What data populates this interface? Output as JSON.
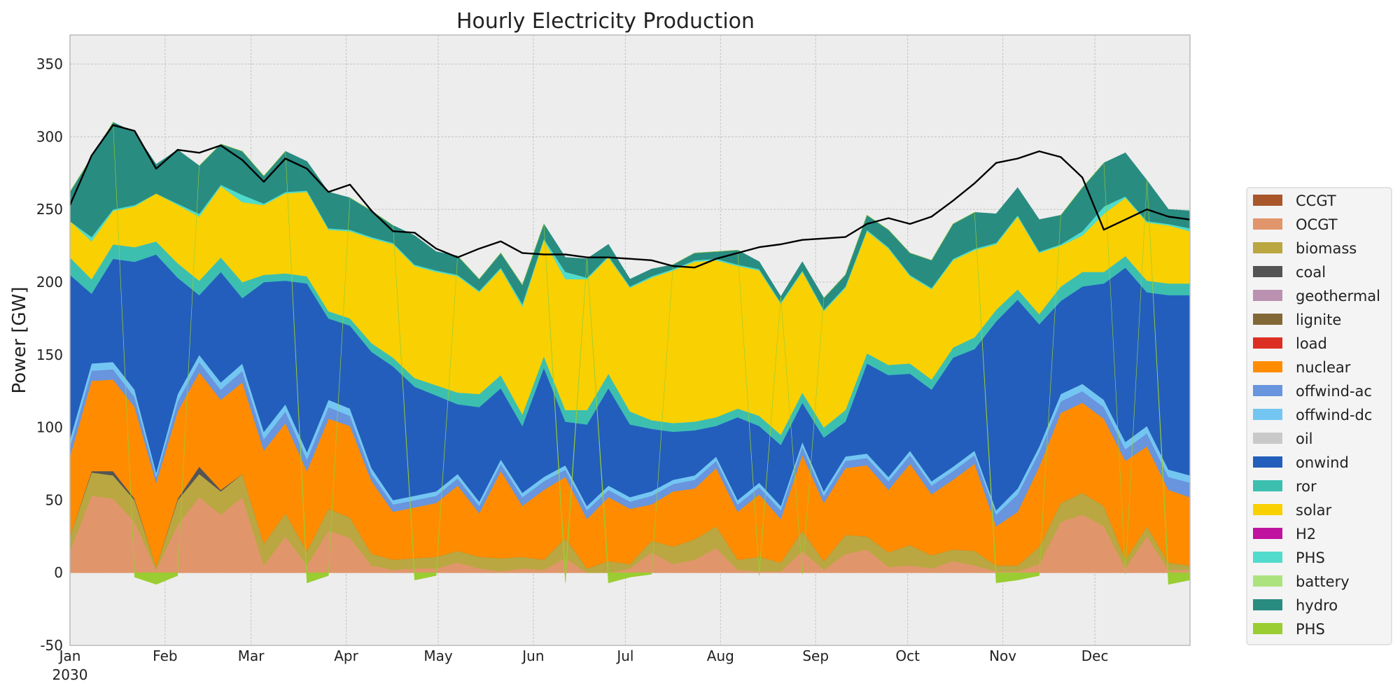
{
  "chart_data": {
    "type": "area",
    "title": "Hourly Electricity Production",
    "ylabel": "Power [GW]",
    "xlabel": "",
    "ylim": [
      -50,
      370
    ],
    "yticks": [
      -50,
      0,
      50,
      100,
      150,
      200,
      250,
      300,
      350
    ],
    "month_ticks": [
      "Jan",
      "Feb",
      "Mar",
      "Apr",
      "May",
      "Jun",
      "Jul",
      "Aug",
      "Sep",
      "Oct",
      "Nov",
      "Dec"
    ],
    "year_label": "2030",
    "x_unit": "week index (weekly averages, 2030)",
    "x": [
      0,
      1,
      2,
      3,
      4,
      5,
      6,
      7,
      8,
      9,
      10,
      11,
      12,
      13,
      14,
      15,
      16,
      17,
      18,
      19,
      20,
      21,
      22,
      23,
      24,
      25,
      26,
      27,
      28,
      29,
      30,
      31,
      32,
      33,
      34,
      35,
      36,
      37,
      38,
      39,
      40,
      41,
      42,
      43,
      44,
      45,
      46,
      47,
      48,
      49,
      50,
      51,
      52
    ],
    "grid": true,
    "legend_position": "right",
    "series": [
      {
        "name": "CCGT",
        "color": "#a9562b",
        "values": [
          0,
          0,
          0,
          0,
          0,
          0,
          0,
          0,
          0,
          0,
          0,
          0,
          0,
          0,
          0,
          0,
          0,
          0,
          0,
          0,
          0,
          0,
          0,
          0,
          0,
          0,
          0,
          0,
          0,
          0,
          0,
          0,
          0,
          0,
          0,
          0,
          0,
          0,
          0,
          0,
          0,
          0,
          0,
          0,
          0,
          0,
          0,
          0,
          0,
          0,
          0,
          0,
          0
        ]
      },
      {
        "name": "OCGT",
        "color": "#e0966a",
        "values": [
          15,
          53,
          51,
          35,
          2,
          33,
          52,
          40,
          52,
          5,
          25,
          5,
          29,
          24,
          5,
          2,
          3,
          3,
          7,
          3,
          1,
          3,
          2,
          10,
          0,
          0,
          3,
          14,
          6,
          9,
          17,
          2,
          1,
          1,
          15,
          2,
          13,
          16,
          4,
          5,
          3,
          8,
          5,
          1,
          1,
          6,
          35,
          40,
          32,
          3,
          25,
          2,
          2
        ]
      },
      {
        "name": "biomass",
        "color": "#baa741",
        "values": [
          10,
          16,
          16,
          15,
          2,
          17,
          16,
          16,
          16,
          15,
          16,
          10,
          15,
          14,
          8,
          7,
          7,
          8,
          8,
          8,
          9,
          8,
          7,
          14,
          3,
          8,
          3,
          8,
          12,
          14,
          15,
          7,
          10,
          6,
          14,
          6,
          13,
          9,
          10,
          14,
          9,
          8,
          10,
          4,
          4,
          12,
          13,
          15,
          14,
          6,
          7,
          5,
          3
        ]
      },
      {
        "name": "coal",
        "color": "#545454",
        "values": [
          0,
          1,
          3,
          1,
          0,
          1,
          5,
          1,
          0,
          0,
          0,
          0,
          0,
          0,
          0,
          0,
          0,
          0,
          0,
          0,
          0,
          0,
          0,
          0,
          0,
          0,
          0,
          0,
          0,
          0,
          0,
          0,
          0,
          0,
          0,
          0,
          0,
          0,
          0,
          0,
          0,
          0,
          0,
          0,
          0,
          0,
          0,
          0,
          0,
          0,
          0,
          0,
          0
        ]
      },
      {
        "name": "geothermal",
        "color": "#ba91b1",
        "values": [
          0,
          0,
          0,
          0,
          0,
          0,
          0,
          0,
          0,
          0,
          0,
          0,
          0,
          0,
          0,
          0,
          0,
          0,
          0,
          0,
          0,
          0,
          0,
          0,
          0,
          0,
          0,
          0,
          0,
          0,
          0,
          0,
          0,
          0,
          0,
          0,
          0,
          0,
          0,
          0,
          0,
          0,
          0,
          0,
          0,
          0,
          0,
          0,
          0,
          0,
          0,
          0,
          0
        ]
      },
      {
        "name": "lignite",
        "color": "#826837",
        "values": [
          0,
          0,
          0,
          0,
          0,
          0,
          0,
          0,
          0,
          0,
          0,
          0,
          0,
          0,
          0,
          0,
          0,
          0,
          0,
          0,
          0,
          0,
          0,
          0,
          0,
          0,
          0,
          0,
          0,
          0,
          0,
          0,
          0,
          0,
          0,
          0,
          0,
          0,
          0,
          0,
          0,
          0,
          0,
          0,
          0,
          0,
          0,
          0,
          0,
          0,
          0,
          0,
          0
        ]
      },
      {
        "name": "load",
        "color": "#dd2e23",
        "values": [
          0,
          0,
          0,
          0,
          0,
          0,
          0,
          0,
          0,
          0,
          0,
          0,
          0,
          0,
          0,
          0,
          0,
          0,
          0,
          0,
          0,
          0,
          0,
          0,
          0,
          0,
          0,
          0,
          0,
          0,
          0,
          0,
          0,
          0,
          0,
          0,
          0,
          0,
          0,
          0,
          0,
          0,
          0,
          0,
          0,
          0,
          0,
          0,
          0,
          0,
          0,
          0,
          0
        ]
      },
      {
        "name": "nuclear",
        "color": "#ff8c00",
        "values": [
          55,
          62,
          63,
          63,
          58,
          60,
          65,
          62,
          63,
          64,
          62,
          55,
          62,
          63,
          50,
          33,
          35,
          37,
          45,
          30,
          60,
          35,
          48,
          42,
          34,
          44,
          38,
          25,
          38,
          35,
          40,
          33,
          43,
          30,
          52,
          40,
          46,
          49,
          43,
          56,
          42,
          48,
          60,
          27,
          37,
          55,
          62,
          62,
          60,
          68,
          55,
          50,
          47
        ]
      },
      {
        "name": "offwind-ac",
        "color": "#6895dd",
        "values": [
          7,
          7,
          7,
          7,
          4,
          7,
          7,
          7,
          8,
          8,
          8,
          8,
          8,
          7,
          5,
          5,
          5,
          5,
          5,
          5,
          5,
          6,
          6,
          5,
          6,
          5,
          5,
          6,
          5,
          6,
          5,
          5,
          5,
          6,
          6,
          5,
          5,
          5,
          6,
          6,
          6,
          6,
          6,
          8,
          12,
          10,
          8,
          8,
          8,
          8,
          9,
          9,
          10
        ]
      },
      {
        "name": "offwind-dc",
        "color": "#74c6f2",
        "values": [
          5,
          5,
          5,
          5,
          3,
          5,
          5,
          5,
          5,
          5,
          5,
          5,
          5,
          5,
          4,
          3,
          3,
          3,
          3,
          3,
          3,
          3,
          3,
          3,
          3,
          3,
          3,
          3,
          3,
          3,
          3,
          3,
          3,
          3,
          3,
          3,
          3,
          3,
          3,
          3,
          3,
          3,
          3,
          3,
          4,
          4,
          5,
          5,
          5,
          5,
          5,
          5,
          5
        ]
      },
      {
        "name": "oil",
        "color": "#c9c9c9",
        "values": [
          0,
          0,
          0,
          0,
          0,
          0,
          0,
          0,
          0,
          0,
          0,
          0,
          0,
          0,
          0,
          0,
          0,
          0,
          0,
          0,
          0,
          0,
          0,
          0,
          0,
          0,
          0,
          0,
          0,
          0,
          0,
          0,
          0,
          0,
          0,
          0,
          0,
          0,
          0,
          0,
          0,
          0,
          0,
          0,
          0,
          0,
          0,
          0,
          0,
          0,
          0,
          0,
          0
        ]
      },
      {
        "name": "onwind",
        "color": "#235ebc",
        "values": [
          113,
          48,
          71,
          88,
          150,
          80,
          41,
          76,
          45,
          103,
          85,
          116,
          56,
          57,
          80,
          92,
          75,
          66,
          48,
          65,
          49,
          46,
          75,
          30,
          56,
          67,
          50,
          43,
          33,
          31,
          21,
          57,
          39,
          42,
          27,
          37,
          24,
          62,
          70,
          53,
          63,
          75,
          70,
          130,
          130,
          84,
          64,
          67,
          80,
          120,
          92,
          120,
          124
        ]
      },
      {
        "name": "ror",
        "color": "#3dbfb0",
        "values": [
          12,
          10,
          10,
          10,
          9,
          10,
          10,
          10,
          11,
          5,
          5,
          5,
          5,
          5,
          6,
          6,
          6,
          7,
          8,
          9,
          9,
          8,
          8,
          8,
          10,
          10,
          9,
          6,
          6,
          6,
          6,
          6,
          7,
          7,
          7,
          7,
          8,
          7,
          7,
          7,
          7,
          7,
          8,
          8,
          7,
          7,
          10,
          10,
          8,
          8,
          8,
          8,
          8
        ]
      },
      {
        "name": "solar",
        "color": "#f9d002",
        "values": [
          25,
          26,
          23,
          28,
          33,
          40,
          44,
          49,
          55,
          48,
          55,
          58,
          56,
          60,
          72,
          78,
          77,
          78,
          80,
          70,
          73,
          74,
          80,
          90,
          90,
          80,
          85,
          98,
          105,
          110,
          108,
          98,
          100,
          90,
          83,
          80,
          84,
          84,
          80,
          60,
          62,
          60,
          60,
          45,
          50,
          42,
          28,
          25,
          40,
          40,
          40,
          40,
          36
        ]
      },
      {
        "name": "H2",
        "color": "#bf13a0",
        "values": [
          0,
          0,
          0,
          0,
          0,
          0,
          0,
          0,
          0,
          0,
          0,
          0,
          0,
          0,
          0,
          0,
          0,
          0,
          0,
          0,
          0,
          0,
          0,
          0,
          0,
          0,
          0,
          0,
          0,
          0,
          0,
          0,
          0,
          0,
          0,
          0,
          0,
          0,
          0,
          0,
          0,
          0,
          0,
          0,
          0,
          0,
          0,
          0,
          0,
          0,
          0,
          0,
          0
        ]
      },
      {
        "name": "PHS",
        "color": "#51dbcc",
        "values": [
          0,
          3,
          1,
          1,
          0,
          1,
          2,
          1,
          5,
          1,
          1,
          1,
          1,
          1,
          1,
          1,
          1,
          1,
          1,
          1,
          1,
          2,
          1,
          5,
          1,
          1,
          1,
          1,
          1,
          1,
          1,
          1,
          1,
          1,
          1,
          1,
          1,
          1,
          1,
          1,
          1,
          1,
          1,
          1,
          1,
          1,
          1,
          3,
          5,
          1,
          1,
          1,
          2
        ]
      },
      {
        "name": "battery",
        "color": "#ace37f",
        "values": [
          0,
          0,
          0,
          0,
          0,
          0,
          0,
          0,
          0,
          0,
          0,
          0,
          0,
          0,
          0,
          0,
          0,
          0,
          0,
          0,
          0,
          0,
          0,
          0,
          0,
          0,
          0,
          0,
          0,
          0,
          0,
          0,
          0,
          0,
          0,
          0,
          0,
          0,
          0,
          0,
          0,
          0,
          0,
          0,
          0,
          0,
          0,
          0,
          0,
          0,
          0,
          0,
          0
        ]
      },
      {
        "name": "hydro",
        "color": "#298c81",
        "values": [
          20,
          55,
          60,
          50,
          20,
          37,
          33,
          28,
          30,
          19,
          28,
          20,
          25,
          22,
          18,
          12,
          20,
          13,
          13,
          8,
          10,
          13,
          10,
          10,
          13,
          8,
          5,
          5,
          3,
          5,
          5,
          10,
          5,
          4,
          6,
          8,
          8,
          10,
          12,
          15,
          19,
          24,
          25,
          20,
          19,
          22,
          20,
          30,
          30,
          30,
          28,
          10,
          12
        ]
      },
      {
        "name": "PHS",
        "color": "#9acd32",
        "values": [
          0,
          0,
          0,
          -3,
          -8,
          -2,
          0,
          0,
          0,
          0,
          0,
          -7,
          -2,
          0,
          0,
          0,
          -5,
          -2,
          0,
          0,
          0,
          0,
          0,
          -7,
          0,
          -7,
          -3,
          -1,
          0,
          0,
          0,
          0,
          -2,
          0,
          -1,
          0,
          0,
          0,
          0,
          0,
          0,
          0,
          0,
          -7,
          -5,
          -2,
          0,
          0,
          0,
          -1,
          0,
          -8,
          -5
        ]
      }
    ],
    "total_load": {
      "color": "#000000",
      "values": [
        253,
        287,
        308,
        304,
        278,
        291,
        289,
        294,
        284,
        269,
        285,
        278,
        262,
        267,
        249,
        235,
        234,
        223,
        217,
        223,
        228,
        220,
        219,
        219,
        217,
        217,
        216,
        215,
        211,
        210,
        216,
        220,
        224,
        226,
        229,
        230,
        231,
        240,
        244,
        240,
        245,
        256,
        268,
        282,
        285,
        290,
        286,
        272,
        236,
        243,
        250,
        245,
        243
      ]
    }
  }
}
